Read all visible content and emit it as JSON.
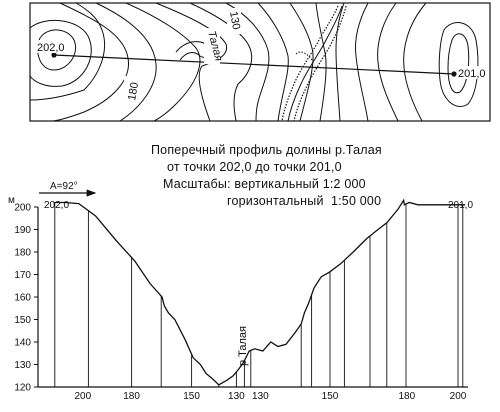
{
  "map": {
    "river_label": "Талая",
    "contour_label_top": "130",
    "contour_label_left": "180",
    "point_left": "202,0",
    "point_right": "201,0"
  },
  "caption": {
    "line1": "Поперечный профиль долины р.Талая",
    "line2": "от точки 202,0 до точки 201,0",
    "line3": "Масштабы: вертикальный 1:2 000",
    "line4": "горизонтальный  1:50 000"
  },
  "profile": {
    "azimuth_label": "A=92°",
    "y_axis_unit": "м",
    "y_ticks": [
      "200",
      "190",
      "180",
      "170",
      "160",
      "150",
      "140",
      "130",
      "120"
    ],
    "start_label": "202,0",
    "end_label": "201,0",
    "river_label": "р.Талая",
    "bottom_labels": [
      "200",
      "180",
      "150",
      "130",
      "130",
      "150",
      "180",
      "200"
    ]
  },
  "chart_data": {
    "type": "area",
    "title": "Поперечный профиль долины р.Талая",
    "xlabel": "",
    "ylabel": "м",
    "ylim": [
      120,
      200
    ],
    "grid": false,
    "x": [
      0,
      14,
      31,
      52,
      78,
      101,
      120,
      135,
      138,
      143,
      151,
      164,
      174,
      183,
      190,
      197,
      206,
      216,
      224,
      231,
      237,
      244,
      251,
      261,
      271,
      280,
      290,
      301,
      309,
      313,
      318,
      325,
      334,
      344,
      359,
      374,
      391,
      405,
      416,
      430,
      437,
      438,
      444,
      455,
      482,
      494,
      505,
      514
    ],
    "y": [
      202,
      202,
      201.5,
      196,
      185,
      176,
      166,
      160,
      156,
      153,
      150,
      141,
      133,
      130,
      126,
      124,
      121,
      123,
      125,
      128,
      131,
      136,
      137,
      136,
      140,
      138,
      139,
      144,
      148,
      153,
      157,
      164,
      169,
      171,
      175,
      180,
      186,
      190,
      193,
      199,
      203,
      201,
      202,
      201,
      201,
      201,
      201,
      201
    ]
  }
}
